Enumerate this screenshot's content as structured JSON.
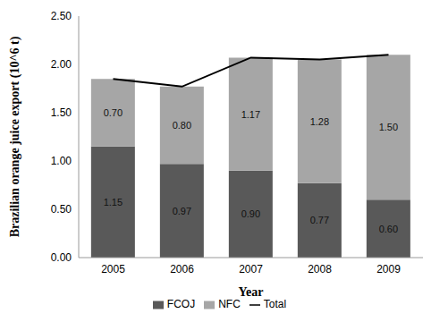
{
  "chart_data": {
    "type": "bar",
    "stacked": true,
    "x_label": "Year",
    "y_label": "Brazilian orange juice export (10^6 t)",
    "categories": [
      "2005",
      "2006",
      "2007",
      "2008",
      "2009"
    ],
    "series": [
      {
        "name": "FCOJ",
        "type": "bar",
        "color": "#595959",
        "data_labels": true,
        "values": [
          1.15,
          0.97,
          0.9,
          0.77,
          0.6
        ],
        "value_labels": [
          "1.15",
          "0.97",
          "0.90",
          "0.77",
          "0.60"
        ]
      },
      {
        "name": "NFC",
        "type": "bar",
        "color": "#a6a6a6",
        "data_labels": true,
        "values": [
          0.7,
          0.8,
          1.17,
          1.28,
          1.5
        ],
        "value_labels": [
          "0.70",
          "0.80",
          "1.17",
          "1.28",
          "1.50"
        ]
      },
      {
        "name": "Total",
        "type": "line",
        "color": "#000000",
        "values": [
          1.85,
          1.77,
          2.07,
          2.05,
          2.1
        ]
      }
    ],
    "ylim": [
      0,
      2.5
    ],
    "yticks": [
      {
        "value": 0,
        "label": "0.00"
      },
      {
        "value": 0.5,
        "label": "0.50"
      },
      {
        "value": 1,
        "label": "1.00"
      },
      {
        "value": 1.5,
        "label": "1.50"
      },
      {
        "value": 2,
        "label": "2.00"
      },
      {
        "value": 2.5,
        "label": "2.50"
      }
    ],
    "grid": false,
    "legend": "bottom"
  }
}
